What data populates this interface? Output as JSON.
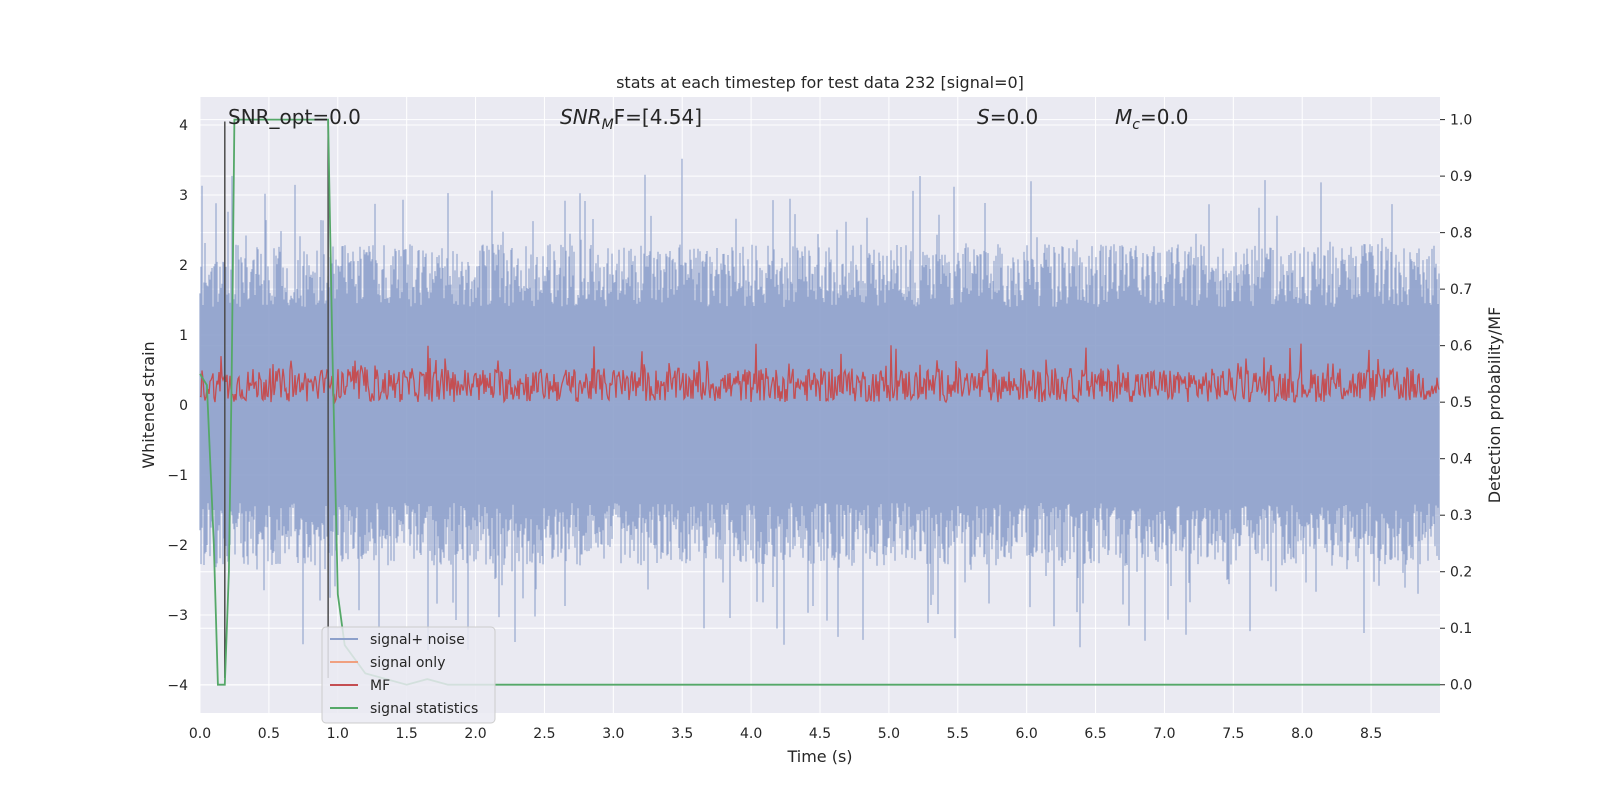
{
  "chart_data": {
    "type": "line",
    "title": "stats at each timestep for test data 232 [signal=0]",
    "xlabel": "Time (s)",
    "ylabel_left": "Whitened strain",
    "ylabel_right": "Detection probability/MF",
    "xlim": [
      0,
      9.0
    ],
    "ylim_left": [
      -4.4,
      4.4
    ],
    "ylim_right": [
      -0.05,
      1.04
    ],
    "x_ticks": [
      "0.0",
      "0.5",
      "1.0",
      "1.5",
      "2.0",
      "2.5",
      "3.0",
      "3.5",
      "4.0",
      "4.5",
      "5.0",
      "5.5",
      "6.0",
      "6.5",
      "7.0",
      "7.5",
      "8.0",
      "8.5"
    ],
    "y_ticks_left": [
      "4",
      "3",
      "2",
      "1",
      "0",
      "−1",
      "−2",
      "−3",
      "−4"
    ],
    "y_ticks_right": [
      "1.0",
      "0.9",
      "0.8",
      "0.7",
      "0.6",
      "0.5",
      "0.4",
      "0.3",
      "0.2",
      "0.1",
      "0.0"
    ],
    "grid": true,
    "legend_position": "lower-left",
    "annotations": {
      "snr_opt": "SNR_opt=0.0",
      "snr_mf_italic": "SNR",
      "snr_mf_sub": "M",
      "snr_mf_rest": "F=[4.54]",
      "s_italic": "S",
      "s_rest": "=0.0",
      "mc_italic": "M",
      "mc_sub": "c",
      "mc_rest": "=0.0"
    },
    "series": [
      {
        "name": "signal+ noise",
        "color": "#8da0cb",
        "axis": "left",
        "description": "noise band approx between -2.5 and 2.5 with peaks near ±3.5"
      },
      {
        "name": "signal only",
        "color": "#f0a080",
        "axis": "left",
        "values": []
      },
      {
        "name": "MF",
        "color": "#c44e52",
        "axis": "right",
        "level": 0.53
      },
      {
        "name": "signal statistics",
        "color": "#55a868",
        "axis": "right",
        "points": [
          [
            0.0,
            0.55
          ],
          [
            0.05,
            0.53
          ],
          [
            0.1,
            0.25
          ],
          [
            0.13,
            0.0
          ],
          [
            0.18,
            0.0
          ],
          [
            0.21,
            0.2
          ],
          [
            0.23,
            0.55
          ],
          [
            0.25,
            1.0
          ],
          [
            0.35,
            1.0
          ],
          [
            0.5,
            1.0
          ],
          [
            0.7,
            1.0
          ],
          [
            0.93,
            1.0
          ],
          [
            0.96,
            0.6
          ],
          [
            1.0,
            0.16
          ],
          [
            1.05,
            0.07
          ],
          [
            1.2,
            0.02
          ],
          [
            1.5,
            0.0
          ],
          [
            1.65,
            0.01
          ],
          [
            1.8,
            0.0
          ],
          [
            2.5,
            0.0
          ],
          [
            5.0,
            0.0
          ],
          [
            8.4,
            0.0
          ],
          [
            9.0,
            0.0
          ]
        ]
      },
      {
        "name": "vertical markers",
        "color": "#4c4c4c",
        "axis": "left",
        "x_values": [
          0.18,
          0.93
        ]
      }
    ],
    "legend": [
      "signal+ noise",
      "signal only",
      "MF",
      "signal statistics"
    ],
    "colors": {
      "background": "#eaeaf2",
      "grid": "#ffffff",
      "noise": "#8da0cb",
      "mf": "#c44e52",
      "stat": "#55a868",
      "signal_only": "#f0a080",
      "marker": "#4c4c4c"
    }
  }
}
